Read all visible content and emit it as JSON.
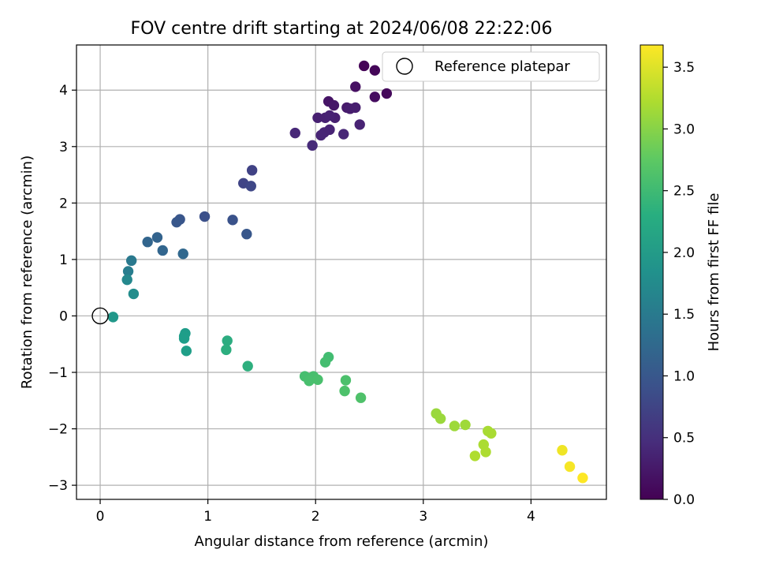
{
  "chart_data": {
    "type": "scatter",
    "title": "FOV centre drift starting at 2024/06/08 22:22:06",
    "xlabel": "Angular distance from reference (arcmin)",
    "ylabel": "Rotation from reference (arcmin)",
    "xlim": [
      -0.22,
      4.7
    ],
    "ylim": [
      -3.25,
      4.8
    ],
    "x_ticks": [
      0,
      1,
      2,
      3,
      4
    ],
    "x_tick_labels": [
      "0",
      "1",
      "2",
      "3",
      "4"
    ],
    "y_ticks": [
      -3,
      -2,
      -1,
      0,
      1,
      2,
      3,
      4
    ],
    "y_tick_labels": [
      "−3",
      "−2",
      "−1",
      "0",
      "1",
      "2",
      "3",
      "4"
    ],
    "grid": true,
    "legend": {
      "position": "upper right",
      "entries": [
        "Reference platepar"
      ]
    },
    "reference_point": {
      "x": 0,
      "y": 0,
      "marker": "open-circle"
    },
    "colorbar": {
      "label": "Hours from first FF file",
      "colormap": "viridis",
      "range": [
        0,
        3.68
      ],
      "ticks": [
        0,
        0.5,
        1,
        1.5,
        2,
        2.5,
        3,
        3.5
      ],
      "tick_labels": [
        "0.0",
        "0.5",
        "1.0",
        "1.5",
        "2.0",
        "2.5",
        "3.0",
        "3.5"
      ]
    },
    "points": [
      {
        "x": 2.45,
        "y": 4.43,
        "t": 0.02
      },
      {
        "x": 2.55,
        "y": 4.35,
        "t": 0.05
      },
      {
        "x": 2.66,
        "y": 3.94,
        "t": 0.08
      },
      {
        "x": 2.55,
        "y": 3.88,
        "t": 0.12
      },
      {
        "x": 2.37,
        "y": 4.06,
        "t": 0.16
      },
      {
        "x": 2.12,
        "y": 3.8,
        "t": 0.2
      },
      {
        "x": 2.17,
        "y": 3.73,
        "t": 0.23
      },
      {
        "x": 2.29,
        "y": 3.69,
        "t": 0.26
      },
      {
        "x": 2.32,
        "y": 3.67,
        "t": 0.29
      },
      {
        "x": 2.37,
        "y": 3.69,
        "t": 0.3
      },
      {
        "x": 2.18,
        "y": 3.51,
        "t": 0.32
      },
      {
        "x": 2.02,
        "y": 3.51,
        "t": 0.33
      },
      {
        "x": 2.09,
        "y": 3.51,
        "t": 0.34
      },
      {
        "x": 2.13,
        "y": 3.55,
        "t": 0.35
      },
      {
        "x": 2.41,
        "y": 3.39,
        "t": 0.36
      },
      {
        "x": 2.13,
        "y": 3.3,
        "t": 0.37
      },
      {
        "x": 2.08,
        "y": 3.25,
        "t": 0.38
      },
      {
        "x": 2.05,
        "y": 3.2,
        "t": 0.39
      },
      {
        "x": 2.26,
        "y": 3.22,
        "t": 0.4
      },
      {
        "x": 1.81,
        "y": 3.24,
        "t": 0.41
      },
      {
        "x": 1.97,
        "y": 3.02,
        "t": 0.44
      },
      {
        "x": 1.41,
        "y": 2.58,
        "t": 0.72
      },
      {
        "x": 1.33,
        "y": 2.35,
        "t": 0.75
      },
      {
        "x": 1.4,
        "y": 2.3,
        "t": 0.78
      },
      {
        "x": 0.97,
        "y": 1.76,
        "t": 0.9
      },
      {
        "x": 1.23,
        "y": 1.7,
        "t": 0.93
      },
      {
        "x": 0.74,
        "y": 1.71,
        "t": 0.98
      },
      {
        "x": 0.71,
        "y": 1.66,
        "t": 1.0
      },
      {
        "x": 1.36,
        "y": 1.45,
        "t": 1.0
      },
      {
        "x": 0.53,
        "y": 1.39,
        "t": 1.16
      },
      {
        "x": 0.44,
        "y": 1.31,
        "t": 1.18
      },
      {
        "x": 0.58,
        "y": 1.16,
        "t": 1.2
      },
      {
        "x": 0.77,
        "y": 1.1,
        "t": 1.22
      },
      {
        "x": 0.29,
        "y": 0.98,
        "t": 1.5
      },
      {
        "x": 0.26,
        "y": 0.79,
        "t": 1.55
      },
      {
        "x": 0.25,
        "y": 0.64,
        "t": 1.72
      },
      {
        "x": 0.31,
        "y": 0.39,
        "t": 1.8
      },
      {
        "x": 0.12,
        "y": -0.02,
        "t": 1.95
      },
      {
        "x": 0.79,
        "y": -0.31,
        "t": 2.02
      },
      {
        "x": 0.78,
        "y": -0.36,
        "t": 2.04
      },
      {
        "x": 0.78,
        "y": -0.4,
        "t": 2.05
      },
      {
        "x": 0.8,
        "y": -0.62,
        "t": 2.06
      },
      {
        "x": 1.18,
        "y": -0.44,
        "t": 2.28
      },
      {
        "x": 1.17,
        "y": -0.6,
        "t": 2.3
      },
      {
        "x": 1.37,
        "y": -0.89,
        "t": 2.32
      },
      {
        "x": 2.12,
        "y": -0.73,
        "t": 2.55
      },
      {
        "x": 2.09,
        "y": -0.82,
        "t": 2.57
      },
      {
        "x": 1.9,
        "y": -1.07,
        "t": 2.58
      },
      {
        "x": 1.98,
        "y": -1.07,
        "t": 2.59
      },
      {
        "x": 1.94,
        "y": -1.15,
        "t": 2.6
      },
      {
        "x": 2.02,
        "y": -1.13,
        "t": 2.61
      },
      {
        "x": 2.28,
        "y": -1.14,
        "t": 2.62
      },
      {
        "x": 2.27,
        "y": -1.33,
        "t": 2.63
      },
      {
        "x": 2.42,
        "y": -1.45,
        "t": 2.64
      },
      {
        "x": 3.12,
        "y": -1.73,
        "t": 3.12
      },
      {
        "x": 3.16,
        "y": -1.82,
        "t": 3.13
      },
      {
        "x": 3.29,
        "y": -1.95,
        "t": 3.14
      },
      {
        "x": 3.39,
        "y": -1.93,
        "t": 3.15
      },
      {
        "x": 3.6,
        "y": -2.04,
        "t": 3.2
      },
      {
        "x": 3.63,
        "y": -2.08,
        "t": 3.21
      },
      {
        "x": 3.56,
        "y": -2.28,
        "t": 3.22
      },
      {
        "x": 3.58,
        "y": -2.41,
        "t": 3.23
      },
      {
        "x": 3.48,
        "y": -2.48,
        "t": 3.24
      },
      {
        "x": 4.29,
        "y": -2.38,
        "t": 3.6
      },
      {
        "x": 4.36,
        "y": -2.67,
        "t": 3.64
      },
      {
        "x": 4.48,
        "y": -2.87,
        "t": 3.68
      }
    ]
  }
}
